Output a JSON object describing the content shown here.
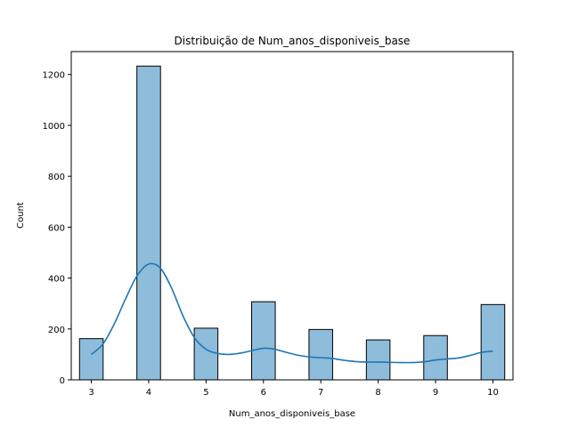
{
  "chart_data": {
    "type": "bar",
    "title": "Distribuição de Num_anos_disponiveis_base",
    "xlabel": "Num_anos_disponiveis_base",
    "ylabel": "Count",
    "xlim": [
      2.65,
      10.35
    ],
    "ylim": [
      0,
      1290
    ],
    "grid": false,
    "legend": "none",
    "x_ticks": [
      3,
      4,
      5,
      6,
      7,
      8,
      9,
      10
    ],
    "y_ticks": [
      0,
      200,
      400,
      600,
      800,
      1000,
      1200
    ],
    "bin_width": 0.4118,
    "bins": [
      {
        "x": 3,
        "count": 162
      },
      {
        "x": 4,
        "count": 1233
      },
      {
        "x": 5,
        "count": 203
      },
      {
        "x": 6,
        "count": 307
      },
      {
        "x": 7,
        "count": 198
      },
      {
        "x": 8,
        "count": 157
      },
      {
        "x": 9,
        "count": 174
      },
      {
        "x": 10,
        "count": 296
      }
    ],
    "kde": {
      "x": [
        3.0,
        3.2,
        3.4,
        3.6,
        3.8,
        4.0,
        4.2,
        4.4,
        4.6,
        4.8,
        5.0,
        5.2,
        5.4,
        5.6,
        5.8,
        6.0,
        6.2,
        6.4,
        6.6,
        6.8,
        7.0,
        7.2,
        7.4,
        7.6,
        7.8,
        8.0,
        8.2,
        8.4,
        8.6,
        8.8,
        9.0,
        9.2,
        9.4,
        9.6,
        9.8,
        10.0
      ],
      "y": [
        100,
        140,
        220,
        320,
        410,
        455,
        440,
        360,
        250,
        165,
        120,
        104,
        100,
        105,
        115,
        124,
        120,
        108,
        97,
        90,
        87,
        84,
        77,
        72,
        70,
        70,
        69,
        68,
        68,
        71,
        78,
        82,
        86,
        96,
        108,
        113
      ]
    },
    "colors": {
      "bar_fill": "#8ebcdb",
      "bar_edge": "#000000",
      "kde_line": "#1f77b4"
    }
  }
}
